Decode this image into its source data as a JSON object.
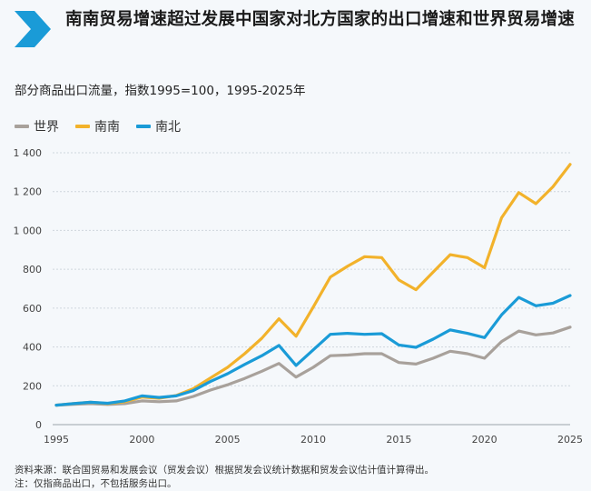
{
  "header": {
    "title": "南南贸易增速超过发展中国家对北方国家的出口增速和世界贸易增速",
    "subtitle": "部分商品出口流量，指数1995=100，1995-2025年"
  },
  "footer": {
    "source": "资料来源：联合国贸易和发展会议（贸发会议）根据贸发会议统计数据和贸发会议估计值计算得出。",
    "note": "注：仅指商品出口，不包括服务出口。"
  },
  "colors": {
    "accent": "#1a9bd7",
    "world": "#a8a19b",
    "south_south": "#f2b22b",
    "south_north": "#1a9bd7",
    "grid": "#cfd6dd"
  },
  "chart_data": {
    "type": "line",
    "title": "南南贸易增速超过发展中国家对北方国家的出口增速和世界贸易增速",
    "subtitle": "部分商品出口流量，指数1995=100，1995-2025年",
    "xlabel": "",
    "ylabel": "",
    "xlim": [
      1995,
      2025
    ],
    "ylim": [
      0,
      1400
    ],
    "x_ticks": [
      1995,
      2000,
      2005,
      2010,
      2015,
      2020,
      2025
    ],
    "y_ticks": [
      0,
      200,
      400,
      600,
      800,
      1000,
      1200,
      1400
    ],
    "y_tick_labels": [
      "0",
      "200",
      "400",
      "600",
      "800",
      "1 000",
      "1 200",
      "1 400"
    ],
    "grid": true,
    "legend_position": "top-left",
    "x": [
      1995,
      1996,
      1997,
      1998,
      1999,
      2000,
      2001,
      2002,
      2003,
      2004,
      2005,
      2006,
      2007,
      2008,
      2009,
      2010,
      2011,
      2012,
      2013,
      2014,
      2015,
      2016,
      2017,
      2018,
      2019,
      2020,
      2021,
      2022,
      2023,
      2024,
      2025
    ],
    "series": [
      {
        "name": "世界",
        "key": "world",
        "values": [
          100,
          105,
          108,
          104,
          108,
          122,
          118,
          122,
          145,
          178,
          205,
          238,
          275,
          315,
          245,
          295,
          355,
          358,
          365,
          365,
          320,
          312,
          342,
          378,
          365,
          342,
          428,
          482,
          462,
          472,
          502
        ]
      },
      {
        "name": "南南",
        "key": "south_south",
        "values": [
          100,
          108,
          115,
          108,
          118,
          142,
          136,
          150,
          185,
          240,
          295,
          365,
          445,
          545,
          455,
          605,
          760,
          815,
          865,
          860,
          745,
          695,
          785,
          875,
          860,
          808,
          1065,
          1195,
          1138,
          1225,
          1340
        ]
      },
      {
        "name": "南北",
        "key": "south_north",
        "values": [
          100,
          108,
          115,
          110,
          122,
          148,
          140,
          148,
          175,
          222,
          262,
          310,
          355,
          408,
          305,
          385,
          465,
          470,
          465,
          468,
          410,
          398,
          440,
          488,
          470,
          448,
          565,
          655,
          612,
          625,
          665
        ]
      }
    ]
  }
}
